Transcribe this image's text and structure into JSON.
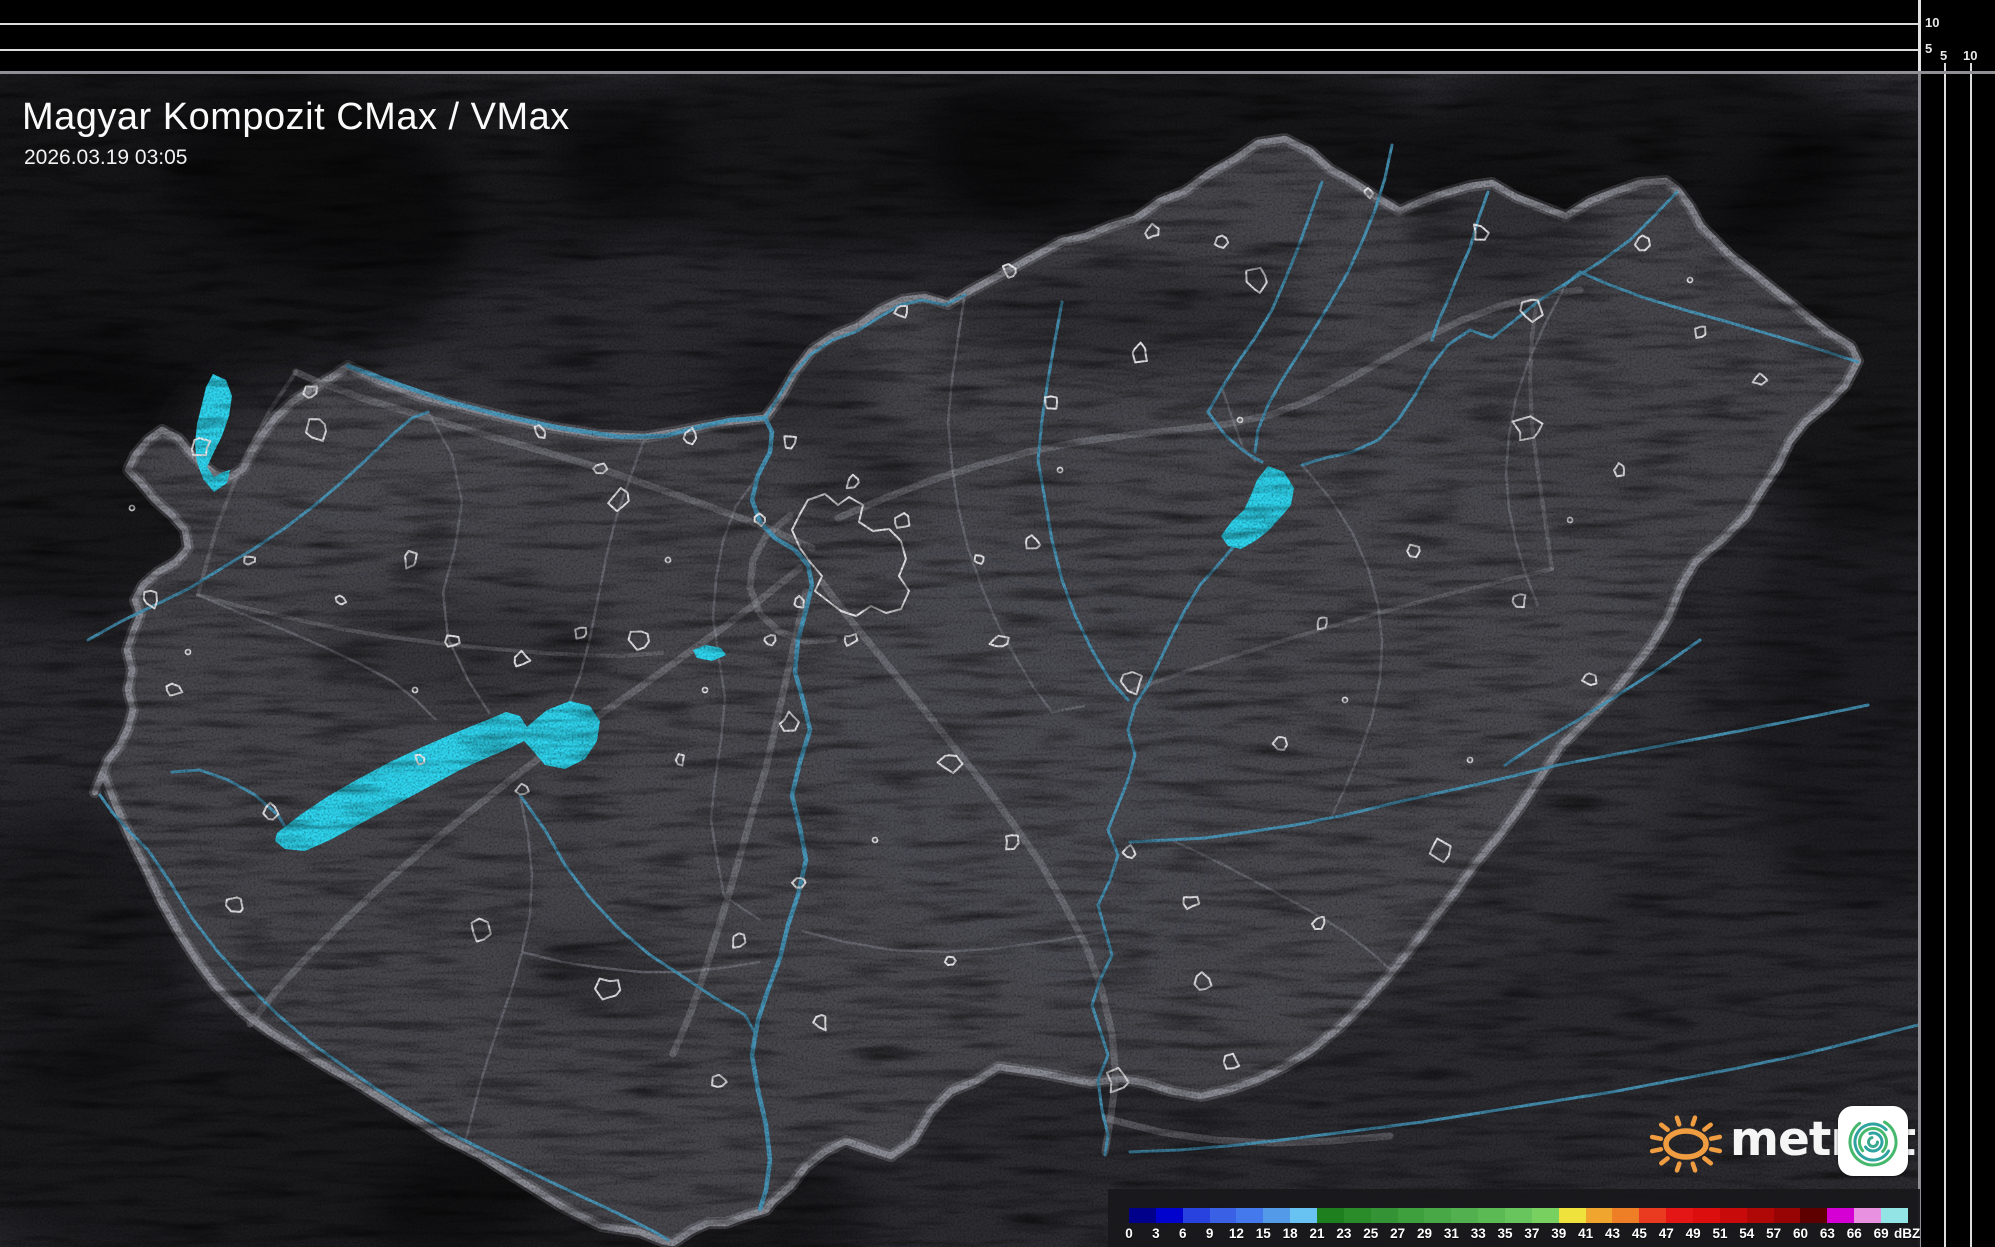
{
  "header": {
    "title": "Magyar Kompozit CMax / VMax",
    "timestamp": "2026.03.19 03:05"
  },
  "profile_scales": {
    "top_axis": {
      "labels": [
        "10",
        "5"
      ]
    },
    "right_axis": {
      "labels": [
        "5",
        "10"
      ]
    }
  },
  "legend": {
    "unit": "dBZ",
    "values": [
      "0",
      "3",
      "6",
      "9",
      "12",
      "15",
      "18",
      "21",
      "23",
      "25",
      "27",
      "29",
      "31",
      "33",
      "35",
      "37",
      "39",
      "41",
      "43",
      "45",
      "47",
      "49",
      "51",
      "54",
      "57",
      "60",
      "63",
      "66",
      "69"
    ],
    "colors": [
      "#00008b",
      "#0202cf",
      "#2742de",
      "#3a60e6",
      "#4379ec",
      "#539ae8",
      "#68c3f2",
      "#1e7f1e",
      "#2a8c28",
      "#349334",
      "#3ea03c",
      "#48a846",
      "#52b04e",
      "#5cba55",
      "#68c45c",
      "#78d061",
      "#f0e23c",
      "#f0a52f",
      "#ef7f27",
      "#ea3a1f",
      "#e41616",
      "#dc0e0e",
      "#c80a0a",
      "#b00707",
      "#980404",
      "#5e0000",
      "#d400d4",
      "#e891e0",
      "#93e4e4"
    ]
  },
  "branding": {
    "wordmark": "metnet"
  },
  "map_colors": {
    "lake": "#2fd7f1",
    "river": "#4a9dc2",
    "country_border": "#90909a",
    "city_outline": "#f0f0f2",
    "land_inside": "#47474d",
    "land_outside": "#2c2c31"
  }
}
